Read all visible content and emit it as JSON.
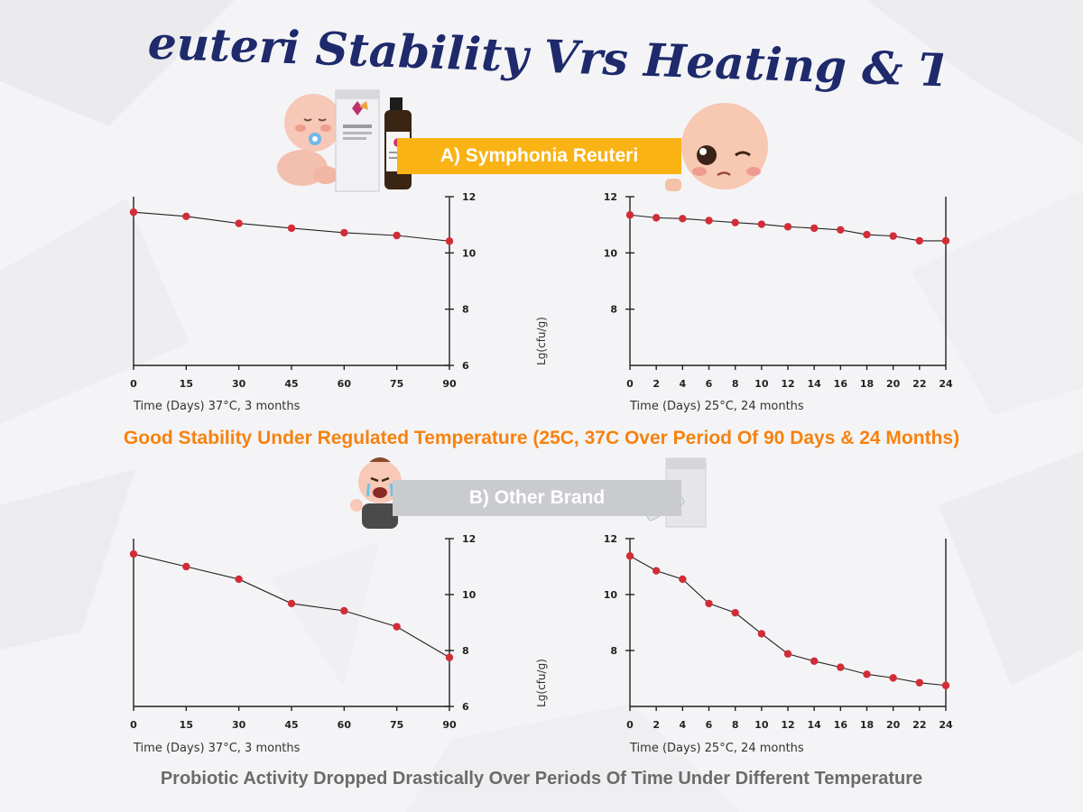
{
  "page": {
    "title": "L. Reuteri Stability Vrs Heating & Time",
    "banner_a": "A) Symphonia Reuteri",
    "banner_b": "B) Other Brand",
    "caption_good": "Good Stability Under Regulated Temperature (25C, 37C Over Period Of 90 Days & 24 Months)",
    "caption_drop": "Probiotic Activity Dropped Drastically Over Periods Of Time Under Different Temperature",
    "colors": {
      "title": "#1e2a6b",
      "banner_a": "#f9b314",
      "banner_b": "#c9cbcf",
      "caption_good": "#f6820f",
      "caption_drop": "#6b6b6b",
      "point": "#d12d38"
    },
    "icons": [
      "baby-sleeping-icon",
      "product-box-bottle-icon",
      "baby-winking-icon",
      "baby-crying-icon",
      "pill-pack-icon"
    ]
  },
  "chart_data": [
    {
      "type": "line",
      "group": "A) Symphonia Reuteri",
      "xlabel": "Time (Days) 37°C, 3 months",
      "ylabel": "",
      "x": [
        0,
        15,
        30,
        45,
        60,
        75,
        90
      ],
      "values": [
        11.45,
        11.3,
        11.05,
        10.88,
        10.72,
        10.62,
        10.42
      ],
      "ylim": [
        6,
        12
      ],
      "yticks": [
        6,
        8,
        10,
        12
      ],
      "y_axis_side": "right"
    },
    {
      "type": "line",
      "group": "A) Symphonia Reuteri",
      "xlabel": "Time (Days) 25°C, 24 months",
      "ylabel": "Lg(cfu/g)",
      "x": [
        0,
        2,
        4,
        6,
        8,
        10,
        12,
        14,
        16,
        18,
        20,
        22,
        24
      ],
      "values": [
        11.35,
        11.25,
        11.22,
        11.15,
        11.08,
        11.02,
        10.93,
        10.88,
        10.82,
        10.65,
        10.6,
        10.43,
        10.43
      ],
      "ylim": [
        6,
        12
      ],
      "yticks": [
        8,
        10,
        12
      ],
      "y_axis_side": "left"
    },
    {
      "type": "line",
      "group": "B) Other Brand",
      "xlabel": "Time (Days) 37°C, 3 months",
      "ylabel": "",
      "x": [
        0,
        15,
        30,
        45,
        60,
        75,
        90
      ],
      "values": [
        11.45,
        11.0,
        10.55,
        9.68,
        9.42,
        8.85,
        7.75
      ],
      "ylim": [
        6,
        12
      ],
      "yticks": [
        6,
        8,
        10,
        12
      ],
      "y_axis_side": "right"
    },
    {
      "type": "line",
      "group": "B) Other Brand",
      "xlabel": "Time (Days) 25°C, 24 months",
      "ylabel": "Lg(cfu/g)",
      "x": [
        0,
        2,
        4,
        6,
        8,
        10,
        12,
        14,
        16,
        18,
        20,
        22,
        24
      ],
      "values": [
        11.38,
        10.85,
        10.55,
        9.68,
        9.35,
        8.6,
        7.88,
        7.62,
        7.4,
        7.15,
        7.02,
        6.85,
        6.75
      ],
      "ylim": [
        6,
        12
      ],
      "yticks": [
        8,
        10,
        12
      ],
      "y_axis_side": "left"
    }
  ]
}
